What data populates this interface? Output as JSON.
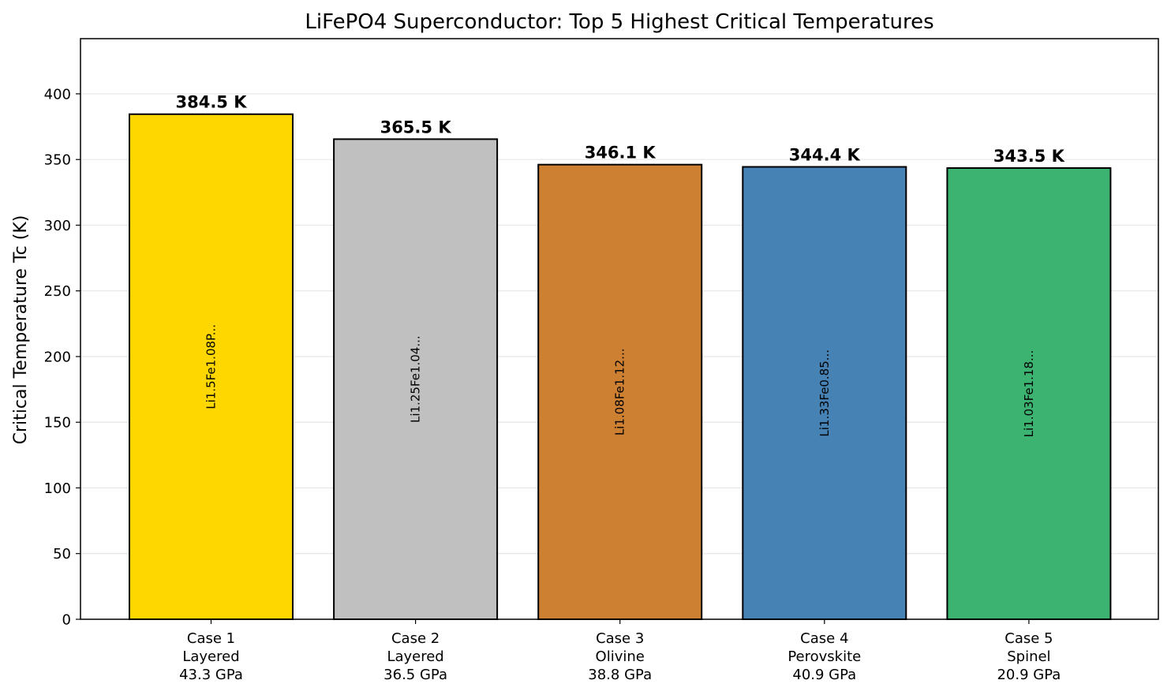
{
  "chart_data": {
    "type": "bar",
    "title": "LiFePO4 Superconductor: Top 5 Highest Critical Temperatures",
    "xlabel": "",
    "ylabel": "Critical Temperature Tc (K)",
    "ylim": [
      0,
      442
    ],
    "yticks": [
      0,
      50,
      100,
      150,
      200,
      250,
      300,
      350,
      400
    ],
    "grid": "y",
    "categories": [
      [
        "Case 1",
        "Layered",
        "43.3 GPa"
      ],
      [
        "Case 2",
        "Layered",
        "36.5 GPa"
      ],
      [
        "Case 3",
        "Olivine",
        "38.8 GPa"
      ],
      [
        "Case 4",
        "Perovskite",
        "40.9 GPa"
      ],
      [
        "Case 5",
        "Spinel",
        "20.9 GPa"
      ]
    ],
    "values": [
      384.5,
      365.5,
      346.1,
      344.4,
      343.5
    ],
    "value_labels": [
      "384.5 K",
      "365.5 K",
      "346.1 K",
      "344.4 K",
      "343.5 K"
    ],
    "bar_inner_labels": [
      "Li1.5Fe1.08P...",
      "Li1.25Fe1.04...",
      "Li1.08Fe1.12...",
      "Li1.33Fe0.85...",
      "Li1.03Fe1.18..."
    ],
    "colors": [
      "#FFD700",
      "#C0C0C0",
      "#CD7F32",
      "#4682B4",
      "#3CB371"
    ]
  }
}
